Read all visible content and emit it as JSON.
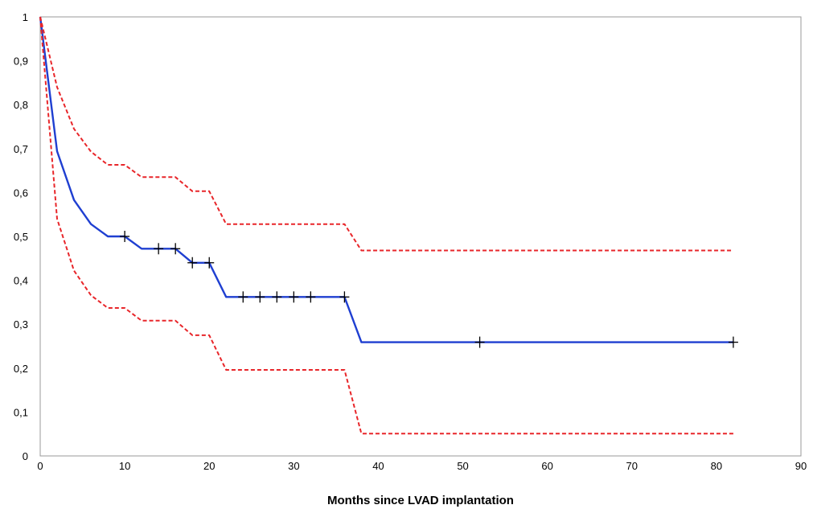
{
  "chart_data": {
    "type": "line",
    "title": "",
    "xlabel": "Months since LVAD implantation",
    "ylabel": "",
    "xlim": [
      0,
      90
    ],
    "ylim": [
      0,
      1
    ],
    "x_ticks": [
      0,
      10,
      20,
      30,
      40,
      50,
      60,
      70,
      80,
      90
    ],
    "y_ticks": [
      0,
      0.1,
      0.2,
      0.3,
      0.4,
      0.5,
      0.6,
      0.7,
      0.8,
      0.9,
      1
    ],
    "y_tick_labels": [
      "0",
      "0,1",
      "0,2",
      "0,3",
      "0,4",
      "0,5",
      "0,6",
      "0,7",
      "0,8",
      "0,9",
      "1"
    ],
    "x_tick_labels": [
      "0",
      "10",
      "20",
      "30",
      "40",
      "50",
      "60",
      "70",
      "80",
      "90"
    ],
    "grid": false,
    "legend": "none",
    "series": [
      {
        "role": "survival",
        "color": "#1f3fd1",
        "style": "solid",
        "x": [
          0,
          2,
          4,
          6,
          8,
          10,
          12,
          14,
          16,
          18,
          20,
          22,
          24,
          26,
          28,
          30,
          32,
          34,
          36,
          38,
          52,
          82
        ],
        "values": [
          1,
          0.694,
          0.583,
          0.528,
          0.5,
          0.5,
          0.472,
          0.472,
          0.472,
          0.44,
          0.44,
          0.362,
          0.362,
          0.362,
          0.362,
          0.362,
          0.362,
          0.362,
          0.362,
          0.259,
          0.259,
          0.259
        ]
      },
      {
        "role": "upper-bound",
        "color": "#e8262a",
        "style": "dashed",
        "x": [
          0,
          2,
          4,
          6,
          8,
          10,
          12,
          14,
          16,
          18,
          20,
          22,
          24,
          26,
          28,
          30,
          32,
          34,
          36,
          38,
          52,
          82
        ],
        "values": [
          1,
          0.84,
          0.745,
          0.693,
          0.663,
          0.663,
          0.635,
          0.635,
          0.635,
          0.603,
          0.603,
          0.528,
          0.528,
          0.528,
          0.528,
          0.528,
          0.528,
          0.528,
          0.528,
          0.468,
          0.468,
          0.468
        ]
      },
      {
        "role": "lower-bound",
        "color": "#e8262a",
        "style": "dashed",
        "x": [
          0,
          2,
          4,
          6,
          8,
          10,
          12,
          14,
          16,
          18,
          20,
          22,
          24,
          26,
          28,
          30,
          32,
          34,
          36,
          38,
          52,
          82
        ],
        "values": [
          1,
          0.54,
          0.422,
          0.366,
          0.337,
          0.337,
          0.308,
          0.308,
          0.308,
          0.275,
          0.275,
          0.196,
          0.196,
          0.196,
          0.196,
          0.196,
          0.196,
          0.196,
          0.196,
          0.051,
          0.051,
          0.051
        ]
      }
    ],
    "censored": {
      "x": [
        10,
        14,
        16,
        18,
        20,
        24,
        26,
        28,
        30,
        32,
        36,
        52,
        82
      ],
      "values": [
        0.5,
        0.472,
        0.472,
        0.44,
        0.44,
        0.362,
        0.362,
        0.362,
        0.362,
        0.362,
        0.362,
        0.259,
        0.259
      ]
    }
  }
}
